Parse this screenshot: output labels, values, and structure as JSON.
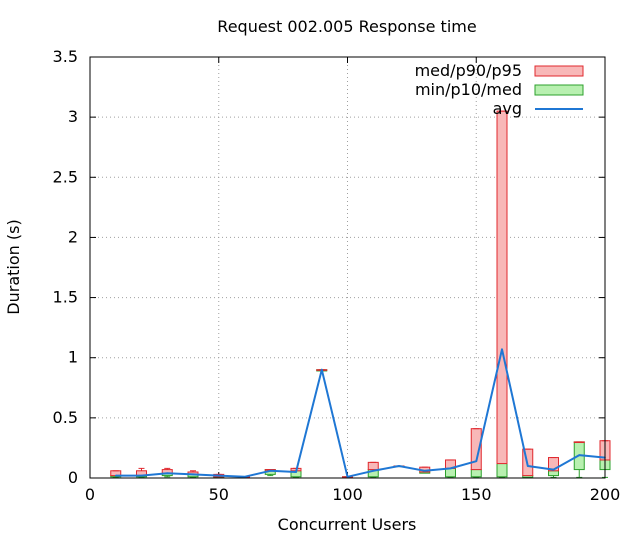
{
  "chart_data": {
    "type": "bar",
    "title": "Request 002.005 Response time",
    "xlabel": "Concurrent Users",
    "ylabel": "Duration (s)",
    "xlim": [
      0,
      200
    ],
    "ylim": [
      0,
      3.5
    ],
    "x_ticks": [
      "0",
      "50",
      "100",
      "150",
      "200"
    ],
    "y_ticks": [
      "0",
      "0.5",
      "1",
      "1.5",
      "2",
      "2.5",
      "3",
      "3.5"
    ],
    "grid": true,
    "legend_position": "top-right",
    "colors": {
      "upper_fill": "#f8b8b8",
      "upper_stroke": "#e0282e",
      "lower_fill": "#b8f0b0",
      "lower_stroke": "#2ca02c",
      "avg_line": "#1f77d4"
    },
    "series": [
      {
        "name": "med/p90/p95",
        "kind": "box-upper"
      },
      {
        "name": "min/p10/med",
        "kind": "box-lower"
      },
      {
        "name": "avg",
        "kind": "line"
      }
    ],
    "points": [
      {
        "x": 10,
        "min": 0.005,
        "p10": 0.01,
        "med": 0.02,
        "p90": 0.06,
        "p95": 0.06,
        "avg": 0.02
      },
      {
        "x": 20,
        "min": 0.005,
        "p10": 0.01,
        "med": 0.02,
        "p90": 0.06,
        "p95": 0.08,
        "avg": 0.02
      },
      {
        "x": 30,
        "min": 0.01,
        "p10": 0.02,
        "med": 0.04,
        "p90": 0.07,
        "p95": 0.08,
        "avg": 0.04
      },
      {
        "x": 40,
        "min": 0.005,
        "p10": 0.01,
        "med": 0.03,
        "p90": 0.05,
        "p95": 0.06,
        "avg": 0.03
      },
      {
        "x": 50,
        "min": 0.005,
        "p10": 0.01,
        "med": 0.01,
        "p90": 0.03,
        "p95": 0.03,
        "avg": 0.02
      },
      {
        "x": 60,
        "min": 0.005,
        "p10": 0.005,
        "med": 0.01,
        "p90": 0.01,
        "p95": 0.01,
        "avg": 0.01
      },
      {
        "x": 70,
        "min": 0.02,
        "p10": 0.03,
        "med": 0.07,
        "p90": 0.07,
        "p95": 0.07,
        "avg": 0.06
      },
      {
        "x": 80,
        "min": 0.005,
        "p10": 0.01,
        "med": 0.06,
        "p90": 0.08,
        "p95": 0.08,
        "avg": 0.05
      },
      {
        "x": 90,
        "min": 0.89,
        "p10": 0.89,
        "med": 0.9,
        "p90": 0.9,
        "p95": 0.9,
        "avg": 0.9
      },
      {
        "x": 100,
        "min": 0.005,
        "p10": 0.005,
        "med": 0.01,
        "p90": 0.01,
        "p95": 0.01,
        "avg": 0.01
      },
      {
        "x": 110,
        "min": 0.005,
        "p10": 0.01,
        "med": 0.07,
        "p90": 0.13,
        "p95": 0.13,
        "avg": 0.06
      },
      {
        "x": 120,
        "min": 0.1,
        "p10": 0.1,
        "med": 0.1,
        "p90": 0.1,
        "p95": 0.1,
        "avg": 0.1
      },
      {
        "x": 130,
        "min": 0.04,
        "p10": 0.04,
        "med": 0.05,
        "p90": 0.09,
        "p95": 0.09,
        "avg": 0.06
      },
      {
        "x": 140,
        "min": 0.005,
        "p10": 0.01,
        "med": 0.08,
        "p90": 0.15,
        "p95": 0.15,
        "avg": 0.08
      },
      {
        "x": 150,
        "min": 0.005,
        "p10": 0.01,
        "med": 0.07,
        "p90": 0.41,
        "p95": 0.41,
        "avg": 0.14
      },
      {
        "x": 160,
        "min": 0.005,
        "p10": 0.01,
        "med": 0.12,
        "p90": 3.05,
        "p95": 3.05,
        "avg": 1.07
      },
      {
        "x": 170,
        "min": 0.005,
        "p10": 0.005,
        "med": 0.02,
        "p90": 0.24,
        "p95": 0.24,
        "avg": 0.1
      },
      {
        "x": 180,
        "min": 0.005,
        "p10": 0.02,
        "med": 0.06,
        "p90": 0.17,
        "p95": 0.17,
        "avg": 0.07
      },
      {
        "x": 190,
        "min": 0.005,
        "p10": 0.07,
        "med": 0.3,
        "p90": 0.3,
        "p95": 0.3,
        "avg": 0.19
      },
      {
        "x": 200,
        "min": 0.005,
        "p10": 0.07,
        "med": 0.15,
        "p90": 0.31,
        "p95": 0.31,
        "avg": 0.17
      }
    ]
  }
}
